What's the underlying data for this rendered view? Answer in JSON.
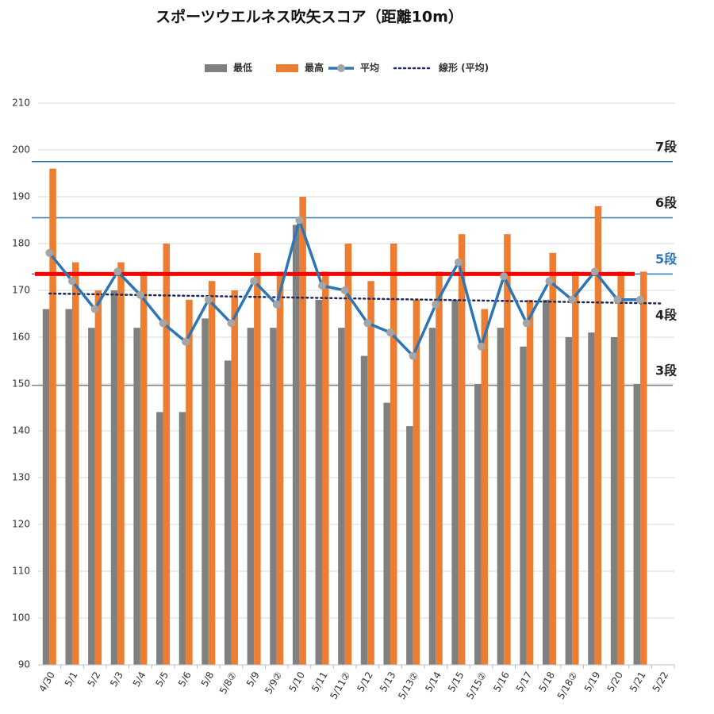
{
  "chart_data": {
    "type": "bar",
    "title": "スポーツウエルネス吹矢スコア（距離10m）",
    "categories": [
      "4/30",
      "5/1",
      "5/2",
      "5/3",
      "5/4",
      "5/5",
      "5/6",
      "5/8",
      "5/8②",
      "5/9",
      "5/9②",
      "5/10",
      "5/11",
      "5/11②",
      "5/12",
      "5/13",
      "5/13②",
      "5/14",
      "5/15",
      "5/15②",
      "5/16",
      "5/17",
      "5/18",
      "5/18②",
      "5/19",
      "5/20",
      "5/21",
      "5/22"
    ],
    "series": [
      {
        "name": "最低",
        "color": "#808080",
        "kind": "bar",
        "values": [
          166,
          166,
          162,
          170,
          162,
          144,
          144,
          164,
          155,
          162,
          162,
          184,
          168,
          162,
          156,
          146,
          141,
          162,
          168,
          150,
          162,
          158,
          168,
          160,
          161,
          160,
          150,
          null
        ]
      },
      {
        "name": "最高",
        "color": "#ed7d31",
        "kind": "bar",
        "values": [
          196,
          176,
          170,
          176,
          174,
          180,
          168,
          172,
          170,
          178,
          174,
          190,
          174,
          180,
          172,
          180,
          168,
          174,
          182,
          166,
          182,
          168,
          178,
          174,
          188,
          174,
          174,
          null
        ]
      },
      {
        "name": "平均",
        "color": "#2e75b6",
        "kind": "line",
        "values": [
          178,
          172,
          166,
          174,
          169,
          163,
          159,
          168,
          163,
          172,
          167,
          185,
          171,
          170,
          163,
          161,
          156,
          167,
          176,
          158,
          173,
          163,
          172,
          168,
          174,
          168,
          168,
          null
        ]
      }
    ],
    "trend": {
      "name": "線形 (平均)",
      "color": "#1f2a5c",
      "of": 2
    },
    "references": [
      {
        "label": "7段",
        "value": 197.5,
        "color": "#2e75b6",
        "width": 1.5,
        "label_color": "#222222"
      },
      {
        "label": "6段",
        "value": 185.5,
        "color": "#2e75b6",
        "width": 1.5,
        "label_color": "#222222"
      },
      {
        "label": "5段",
        "value": 173.5,
        "color": "#2e75b6",
        "width": 1.5,
        "label_color": "#2e75b6"
      },
      {
        "label": "4段",
        "value": 161.5,
        "color": "none",
        "width": 0,
        "label_color": "#222222"
      },
      {
        "label": "3段",
        "value": 149.7,
        "color": "#808080",
        "width": 1.5,
        "label_color": "#222222"
      },
      {
        "value": 173.5,
        "color": "#ff0000",
        "width": 5
      }
    ],
    "ylim": [
      90,
      210
    ],
    "yticks": [
      90,
      100,
      110,
      120,
      130,
      140,
      150,
      160,
      170,
      180,
      190,
      200,
      210
    ],
    "grid": true
  }
}
